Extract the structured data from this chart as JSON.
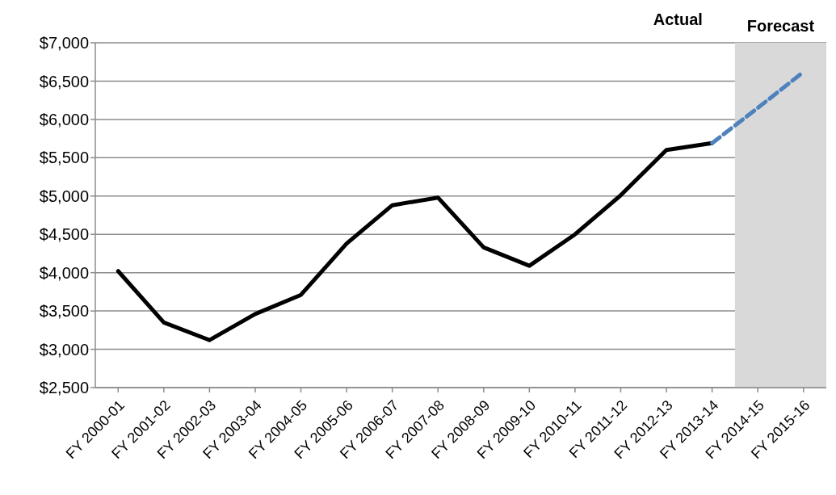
{
  "chart_data": {
    "type": "line",
    "categories": [
      "FY 2000-01",
      "FY 2001-02",
      "FY 2002-03",
      "FY 2003-04",
      "FY 2004-05",
      "FY 2005-06",
      "FY 2006-07",
      "FY 2007-08",
      "FY 2008-09",
      "FY 2009-10",
      "FY 2010-11",
      "FY 2011-12",
      "FY 2012-13",
      "FY 2013-14",
      "FY 2014-15",
      "FY 2015-16"
    ],
    "series": [
      {
        "color": "#000000",
        "line_style": "solid",
        "values": [
          4020,
          3350,
          3120,
          3460,
          3710,
          4380,
          4880,
          4980,
          4330,
          4090,
          4500,
          5010,
          5600,
          5690,
          null,
          null
        ]
      },
      {
        "color": "#4f81bd",
        "line_style": "dashed",
        "values": [
          null,
          null,
          null,
          null,
          null,
          null,
          null,
          null,
          null,
          null,
          null,
          null,
          null,
          5690,
          6150,
          6620
        ]
      }
    ],
    "ylim": [
      2500,
      7000
    ],
    "yticks": [
      {
        "value": 2500,
        "label": "$2,500"
      },
      {
        "value": 3000,
        "label": "$3,000"
      },
      {
        "value": 3500,
        "label": "$3,500"
      },
      {
        "value": 4000,
        "label": "$4,000"
      },
      {
        "value": 4500,
        "label": "$4,500"
      },
      {
        "value": 5000,
        "label": "$5,000"
      },
      {
        "value": 5500,
        "label": "$5,500"
      },
      {
        "value": 6000,
        "label": "$6,000"
      },
      {
        "value": 6500,
        "label": "$6,500"
      },
      {
        "value": 7000,
        "label": "$7,000"
      }
    ],
    "grid": "y",
    "marker": "none",
    "legend": false,
    "bands": [
      {
        "axis": "x",
        "from": "FY 2014-15",
        "to": "FY 2015-16",
        "label": "Forecast",
        "color": "#d9d9d9"
      }
    ],
    "annotations": [
      "Actual"
    ]
  }
}
